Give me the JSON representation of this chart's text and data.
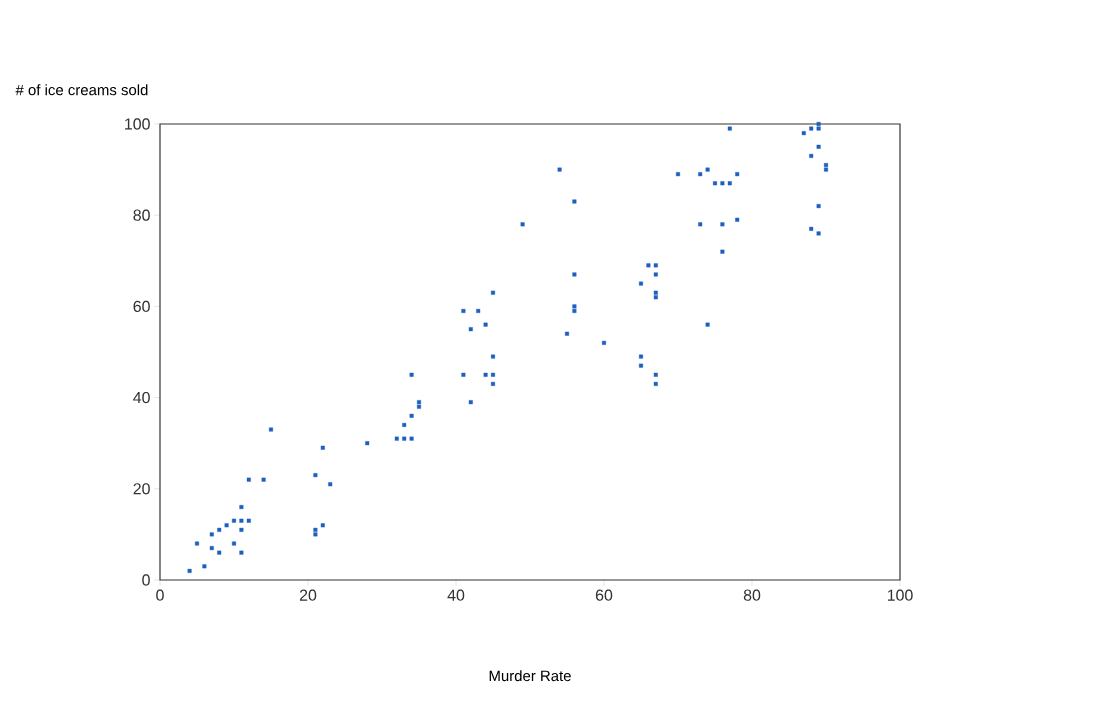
{
  "chart_data": {
    "type": "scatter",
    "xlabel": "Murder Rate",
    "ylabel": "# of ice creams sold",
    "xlim": [
      0,
      100
    ],
    "ylim": [
      0,
      100
    ],
    "xticks": [
      0,
      20,
      40,
      60,
      80,
      100
    ],
    "yticks": [
      0,
      20,
      40,
      60,
      80,
      100
    ],
    "grid": false,
    "marker": "square",
    "series": [
      {
        "color": "#1f5fbf",
        "x": [
          4,
          5,
          6,
          7,
          7,
          8,
          8,
          9,
          10,
          10,
          11,
          11,
          11,
          11,
          12,
          12,
          14,
          15,
          21,
          21,
          21,
          22,
          22,
          23,
          28,
          32,
          33,
          33,
          34,
          34,
          34,
          35,
          35,
          41,
          41,
          42,
          42,
          43,
          44,
          44,
          45,
          45,
          45,
          45,
          49,
          54,
          55,
          56,
          56,
          56,
          56,
          60,
          65,
          65,
          65,
          66,
          67,
          67,
          67,
          67,
          67,
          67,
          70,
          73,
          73,
          74,
          74,
          75,
          76,
          76,
          76,
          77,
          77,
          78,
          78,
          87,
          88,
          88,
          88,
          89,
          89,
          89,
          89,
          89,
          90,
          90
        ],
        "values": [
          2,
          8,
          3,
          7,
          10,
          11,
          6,
          12,
          13,
          8,
          13,
          11,
          16,
          6,
          13,
          22,
          22,
          33,
          23,
          11,
          10,
          12,
          29,
          21,
          30,
          31,
          31,
          34,
          36,
          45,
          31,
          38,
          39,
          59,
          45,
          55,
          39,
          59,
          56,
          45,
          63,
          45,
          43,
          49,
          78,
          90,
          54,
          83,
          67,
          60,
          59,
          52,
          65,
          49,
          47,
          69,
          69,
          67,
          63,
          62,
          45,
          43,
          89,
          89,
          78,
          90,
          56,
          87,
          87,
          78,
          72,
          99,
          87,
          89,
          79,
          98,
          99,
          93,
          77,
          99,
          100,
          95,
          82,
          76,
          91,
          90
        ]
      }
    ]
  }
}
